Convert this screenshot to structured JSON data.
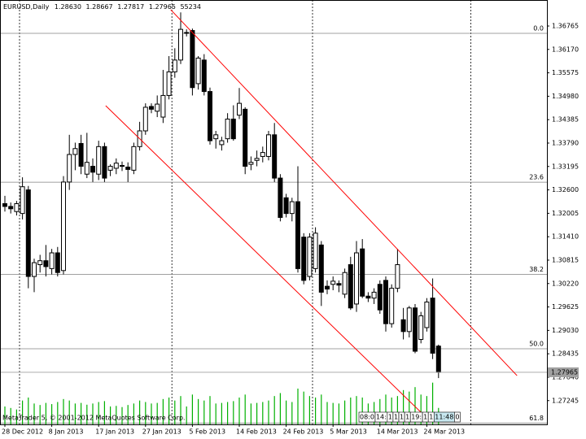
{
  "chart_data": {
    "type": "candlestick",
    "header": {
      "symbol": "EURUSD,Daily",
      "open": "1.28630",
      "high": "1.28667",
      "low": "1.27817",
      "close": "1.27965",
      "volume": "55234"
    },
    "footer": "MetaTrader 5, © 2001-2012 MetaQuotes Software Corp.",
    "categories": [
      "28 Dec 2012",
      null,
      null,
      null,
      null,
      null,
      null,
      null,
      "8 Jan 2013",
      null,
      null,
      null,
      null,
      null,
      null,
      null,
      "17 Jan 2013",
      null,
      null,
      null,
      null,
      null,
      null,
      null,
      "27 Jan 2013",
      null,
      null,
      null,
      null,
      null,
      null,
      null,
      "5 Feb 2013",
      null,
      null,
      null,
      null,
      null,
      null,
      null,
      "14 Feb 2013",
      null,
      null,
      null,
      null,
      null,
      null,
      null,
      "24 Feb 2013",
      null,
      null,
      null,
      null,
      null,
      null,
      null,
      "5 Mar 2013",
      null,
      null,
      null,
      null,
      null,
      null,
      null,
      "14 Mar 2013",
      null,
      null,
      null,
      null,
      null,
      null,
      null,
      "24 Mar 2013",
      null,
      null
    ],
    "ohlc": [
      [
        1.3225,
        1.3245,
        1.3205,
        1.3218
      ],
      [
        1.3218,
        1.3228,
        1.32,
        1.3212
      ],
      [
        1.3205,
        1.3232,
        1.3195,
        1.3225
      ],
      [
        1.32,
        1.3292,
        1.3185,
        1.3268
      ],
      [
        1.326,
        1.327,
        1.301,
        1.304
      ],
      [
        1.304,
        1.3085,
        1.3,
        1.3075
      ],
      [
        1.307,
        1.3095,
        1.305,
        1.308
      ],
      [
        1.308,
        1.312,
        1.304,
        1.3065
      ],
      [
        1.306,
        1.311,
        1.3045,
        1.31
      ],
      [
        1.31,
        1.3115,
        1.304,
        1.305
      ],
      [
        1.3055,
        1.3295,
        1.3045,
        1.328
      ],
      [
        1.328,
        1.34,
        1.326,
        1.335
      ],
      [
        1.335,
        1.338,
        1.331,
        1.3365
      ],
      [
        1.3378,
        1.34,
        1.33,
        1.332
      ],
      [
        1.33,
        1.3405,
        1.329,
        1.333
      ],
      [
        1.332,
        1.334,
        1.328,
        1.3305
      ],
      [
        1.33,
        1.3385,
        1.3285,
        1.337
      ],
      [
        1.337,
        1.338,
        1.328,
        1.329
      ],
      [
        1.331,
        1.3325,
        1.3295,
        1.332
      ],
      [
        1.3315,
        1.334,
        1.33,
        1.3328
      ],
      [
        1.332,
        1.3332,
        1.3308,
        1.3322
      ],
      [
        1.3318,
        1.333,
        1.328,
        1.3312
      ],
      [
        1.331,
        1.338,
        1.33,
        1.337
      ],
      [
        1.337,
        1.3433,
        1.336,
        1.341
      ],
      [
        1.341,
        1.348,
        1.34,
        1.347
      ],
      [
        1.3472,
        1.348,
        1.3455,
        1.3465
      ],
      [
        1.346,
        1.35,
        1.3445,
        1.3478
      ],
      [
        1.3445,
        1.3565,
        1.343,
        1.35
      ],
      [
        1.35,
        1.36,
        1.349,
        1.356
      ],
      [
        1.356,
        1.362,
        1.3545,
        1.359
      ],
      [
        1.359,
        1.3711,
        1.358,
        1.3668
      ],
      [
        1.366,
        1.3668,
        1.365,
        1.3658
      ],
      [
        1.3665,
        1.367,
        1.35,
        1.352
      ],
      [
        1.353,
        1.36,
        1.3515,
        1.3595
      ],
      [
        1.359,
        1.3605,
        1.35,
        1.351
      ],
      [
        1.351,
        1.352,
        1.3375,
        1.3385
      ],
      [
        1.339,
        1.341,
        1.3365,
        1.34
      ],
      [
        1.3375,
        1.3395,
        1.336,
        1.3385
      ],
      [
        1.339,
        1.3455,
        1.338,
        1.344
      ],
      [
        1.344,
        1.3475,
        1.3385,
        1.339
      ],
      [
        1.345,
        1.3519,
        1.344,
        1.348
      ],
      [
        1.3465,
        1.347,
        1.33,
        1.332
      ],
      [
        1.3325,
        1.3345,
        1.331,
        1.333
      ],
      [
        1.3335,
        1.336,
        1.332,
        1.334
      ],
      [
        1.3345,
        1.337,
        1.333,
        1.3355
      ],
      [
        1.3345,
        1.341,
        1.3335,
        1.34
      ],
      [
        1.34,
        1.343,
        1.328,
        1.329
      ],
      [
        1.329,
        1.33,
        1.318,
        1.319
      ],
      [
        1.324,
        1.325,
        1.319,
        1.32
      ],
      [
        1.32,
        1.324,
        1.318,
        1.323
      ],
      [
        1.323,
        1.332,
        1.305,
        1.306
      ],
      [
        1.314,
        1.315,
        1.302,
        1.303
      ],
      [
        1.304,
        1.315,
        1.303,
        1.314
      ],
      [
        1.306,
        1.3165,
        1.305,
        1.315
      ],
      [
        1.312,
        1.313,
        1.2965,
        1.3
      ],
      [
        1.3015,
        1.303,
        1.2995,
        1.3008
      ],
      [
        1.302,
        1.304,
        1.3005,
        1.3028
      ],
      [
        1.3022,
        1.303,
        1.3,
        1.3018
      ],
      [
        1.2995,
        1.306,
        1.2985,
        1.305
      ],
      [
        1.307,
        1.309,
        1.2955,
        1.296
      ],
      [
        1.297,
        1.313,
        1.295,
        1.31
      ],
      [
        1.311,
        1.3135,
        1.2985,
        1.299
      ],
      [
        1.299,
        1.3,
        1.2975,
        1.2985
      ],
      [
        1.2985,
        1.301,
        1.297,
        1.3
      ],
      [
        1.302,
        1.303,
        1.2945,
        1.2955
      ],
      [
        1.303,
        1.304,
        1.29,
        1.292
      ],
      [
        1.292,
        1.302,
        1.291,
        1.301
      ],
      [
        1.301,
        1.311,
        1.3,
        1.307
      ],
      [
        1.293,
        1.296,
        1.288,
        1.29
      ],
      [
        1.29,
        1.2965,
        1.2885,
        1.296
      ],
      [
        1.296,
        1.297,
        1.2845,
        1.285
      ],
      [
        1.288,
        1.295,
        1.287,
        1.294
      ],
      [
        1.291,
        1.2985,
        1.29,
        1.2975
      ],
      [
        1.2985,
        1.3035,
        1.283,
        1.2845
      ],
      [
        1.2863,
        1.28667,
        1.27817,
        1.27965
      ]
    ],
    "volumes": [
      60000,
      55000,
      50000,
      80000,
      90000,
      70000,
      65000,
      72000,
      68000,
      75000,
      85000,
      80000,
      70000,
      72000,
      66000,
      70000,
      75000,
      78000,
      60000,
      62000,
      58000,
      65000,
      70000,
      80000,
      75000,
      70000,
      72000,
      85000,
      90000,
      80000,
      95000,
      60000,
      100000,
      85000,
      80000,
      95000,
      70000,
      72000,
      75000,
      78000,
      90000,
      100000,
      70000,
      72000,
      75000,
      80000,
      95000,
      105000,
      80000,
      75000,
      120000,
      110000,
      95000,
      90000,
      100000,
      75000,
      72000,
      70000,
      80000,
      90000,
      95000,
      90000,
      70000,
      75000,
      85000,
      100000,
      90000,
      95000,
      115000,
      110000,
      125000,
      100000,
      95000,
      140000,
      55234
    ],
    "vlim": [
      0,
      150000
    ],
    "up_color": "#ffffff",
    "down_color": "#000000",
    "volume_color": "#00b000",
    "ylim": [
      1.26641,
      1.37426
    ],
    "yticks": [
      1.36765,
      {
        "value": 1.3617,
        "label": "1.36170"
      },
      1.35575,
      {
        "value": 1.3498,
        "label": "1.34980"
      },
      1.34385,
      {
        "value": 1.3379,
        "label": "1.33790"
      },
      1.33195,
      {
        "value": 1.326,
        "label": "1.32600"
      },
      1.32005,
      {
        "value": 1.3141,
        "label": "1.31410"
      },
      1.30815,
      {
        "value": 1.3022,
        "label": "1.30220"
      },
      1.29625,
      {
        "value": 1.2903,
        "label": "1.29030"
      },
      1.28435,
      {
        "value": 1.2784,
        "label": "1.27840"
      },
      1.27245
    ],
    "fib_levels": [
      {
        "label": "0.0",
        "price": 1.36579
      },
      {
        "label": "23.6",
        "price": 1.32795
      },
      {
        "label": "38.2",
        "price": 1.30455
      },
      {
        "label": "50.0",
        "price": 1.28563
      },
      {
        "label": "61.8",
        "price": 1.26671
      }
    ],
    "trendlines": [
      {
        "color": "#ff0000",
        "x": [
          28.3,
          87.4
        ],
        "y": [
          1.3718,
          1.2788
        ]
      },
      {
        "color": "#ff0000",
        "x": [
          17.2,
          71.4
        ],
        "y": [
          1.3474,
          1.2689
        ]
      }
    ],
    "vgrid": [
      2.5,
      28.5,
      52.5,
      79.5
    ],
    "time_boxes": [
      "08:0",
      "14:",
      "1",
      "1",
      "1",
      "1",
      "19:",
      "1",
      "1",
      "11:48",
      "0"
    ]
  }
}
